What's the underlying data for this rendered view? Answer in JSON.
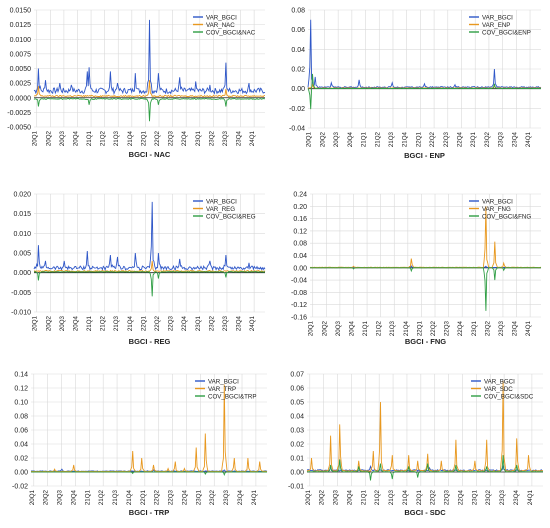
{
  "colors": {
    "var_bgci": "#2f57c8",
    "second": "#e8981f",
    "cov": "#2f9e44",
    "zero": "#222222",
    "grid": "#d9d9d9"
  },
  "x_ticks": [
    "20Q1",
    "20Q2",
    "20Q3",
    "20Q4",
    "21Q1",
    "21Q2",
    "21Q3",
    "21Q4",
    "22Q1",
    "22Q2",
    "22Q3",
    "22Q4",
    "23Q1",
    "23Q2",
    "23Q3",
    "23Q4",
    "24Q1"
  ],
  "chart_data": [
    {
      "type": "line",
      "title": "BGCI - NAC",
      "ylim": [
        -0.005,
        0.015
      ],
      "y_ticks": [
        "0.0150",
        "0.0125",
        "0.0100",
        "0.0075",
        "0.0050",
        "0.0025",
        "0.0000",
        "-0.0025",
        "-0.0050"
      ],
      "y_tick_values": [
        0.015,
        0.0125,
        0.01,
        0.0075,
        0.005,
        0.0025,
        0,
        -0.0025,
        -0.005
      ],
      "legend": [
        "VAR_BGCI",
        "VAR_NAC",
        "COV_BGCI&NAC"
      ],
      "legend_placement": "top-right",
      "series": [
        {
          "name": "VAR_BGCI",
          "baseline": 0.0012,
          "spikes": [
            [
              0.02,
              0.005
            ],
            [
              0.05,
              0.003
            ],
            [
              0.11,
              0.0025
            ],
            [
              0.16,
              0.0022
            ],
            [
              0.23,
              0.0042
            ],
            [
              0.24,
              0.0052
            ],
            [
              0.33,
              0.0045
            ],
            [
              0.36,
              0.0025
            ],
            [
              0.44,
              0.0042
            ],
            [
              0.5,
              0.0133
            ],
            [
              0.54,
              0.0042
            ],
            [
              0.63,
              0.0035
            ],
            [
              0.7,
              0.0028
            ],
            [
              0.76,
              0.0022
            ],
            [
              0.83,
              0.006
            ],
            [
              0.93,
              0.0025
            ]
          ]
        },
        {
          "name": "VAR_NAC",
          "baseline": 0.0003,
          "spikes": [
            [
              0.02,
              0.002
            ],
            [
              0.5,
              0.003
            ],
            [
              0.83,
              0.0015
            ]
          ]
        },
        {
          "name": "COV_BGCI&NAC",
          "baseline": -0.0002,
          "spikes": [
            [
              0.02,
              -0.0015
            ],
            [
              0.24,
              -0.0012
            ],
            [
              0.5,
              -0.004
            ],
            [
              0.54,
              -0.0012
            ],
            [
              0.83,
              -0.0015
            ]
          ]
        }
      ]
    },
    {
      "type": "line",
      "title": "BGCI - ENP",
      "ylim": [
        -0.04,
        0.08
      ],
      "y_ticks": [
        "0.08",
        "0.06",
        "0.04",
        "0.02",
        "0.00",
        "-0.02",
        "-0.04"
      ],
      "y_tick_values": [
        0.08,
        0.06,
        0.04,
        0.02,
        0,
        -0.02,
        -0.04
      ],
      "legend": [
        "VAR_BGCI",
        "VAR_ENP",
        "COV_BGCI&ENP"
      ],
      "legend_placement": "top-right",
      "series": [
        {
          "name": "VAR_BGCI",
          "baseline": 0.0015,
          "spikes": [
            [
              0.01,
              0.07
            ],
            [
              0.03,
              0.012
            ],
            [
              0.1,
              0.006
            ],
            [
              0.22,
              0.009
            ],
            [
              0.36,
              0.006
            ],
            [
              0.5,
              0.005
            ],
            [
              0.63,
              0.004
            ],
            [
              0.8,
              0.02
            ]
          ]
        },
        {
          "name": "VAR_ENP",
          "baseline": 0.0006,
          "spikes": [
            [
              0.02,
              0.004
            ],
            [
              0.8,
              0.003
            ]
          ]
        },
        {
          "name": "COV_BGCI&ENP",
          "baseline": 0.0002,
          "spikes": [
            [
              0.01,
              -0.022
            ],
            [
              0.02,
              0.015
            ],
            [
              0.8,
              0.005
            ]
          ]
        }
      ]
    },
    {
      "type": "line",
      "title": "BGCI - REG",
      "ylim": [
        -0.01,
        0.02
      ],
      "y_ticks": [
        "0.020",
        "0.015",
        "0.010",
        "0.005",
        "0.000",
        "-0.005",
        "-0.010"
      ],
      "y_tick_values": [
        0.02,
        0.015,
        0.01,
        0.005,
        0,
        -0.005,
        -0.01
      ],
      "legend": [
        "VAR_BGCI",
        "VAR_REG",
        "COV_BGCI&REG"
      ],
      "legend_placement": "top-right",
      "series": [
        {
          "name": "VAR_BGCI",
          "baseline": 0.0012,
          "spikes": [
            [
              0.02,
              0.007
            ],
            [
              0.05,
              0.003
            ],
            [
              0.13,
              0.003
            ],
            [
              0.23,
              0.0055
            ],
            [
              0.33,
              0.0045
            ],
            [
              0.36,
              0.004
            ],
            [
              0.44,
              0.005
            ],
            [
              0.51,
              0.018
            ],
            [
              0.54,
              0.005
            ],
            [
              0.63,
              0.0035
            ],
            [
              0.76,
              0.003
            ],
            [
              0.83,
              0.0045
            ],
            [
              0.93,
              0.0025
            ]
          ]
        },
        {
          "name": "VAR_REG",
          "baseline": 0.0004,
          "spikes": [
            [
              0.51,
              0.003
            ]
          ]
        },
        {
          "name": "COV_BGCI&REG",
          "baseline": 0.0002,
          "spikes": [
            [
              0.02,
              -0.002
            ],
            [
              0.51,
              -0.006
            ],
            [
              0.54,
              -0.0015
            ],
            [
              0.83,
              -0.0012
            ]
          ]
        }
      ]
    },
    {
      "type": "line",
      "title": "BGCI - FNG",
      "ylim": [
        -0.16,
        0.24
      ],
      "y_ticks": [
        "0.24",
        "0.20",
        "0.16",
        "0.12",
        "0.08",
        "0.04",
        "0.00",
        "-0.04",
        "-0.08",
        "-0.12",
        "-0.16"
      ],
      "y_tick_values": [
        0.24,
        0.2,
        0.16,
        0.12,
        0.08,
        0.04,
        0,
        -0.04,
        -0.08,
        -0.12,
        -0.16
      ],
      "legend": [
        "VAR_BGCI",
        "VAR_FNG",
        "COV_BGCI&FNG"
      ],
      "legend_placement": "top-right",
      "series": [
        {
          "name": "VAR_BGCI",
          "baseline": 0.001,
          "spikes": [
            [
              0.44,
              0.006
            ],
            [
              0.76,
              0.005
            ]
          ]
        },
        {
          "name": "VAR_FNG",
          "baseline": 0.0015,
          "spikes": [
            [
              0.19,
              0.005
            ],
            [
              0.44,
              0.03
            ],
            [
              0.76,
              0.2
            ],
            [
              0.8,
              0.085
            ],
            [
              0.84,
              0.015
            ]
          ]
        },
        {
          "name": "COV_BGCI&FNG",
          "baseline": 0.0002,
          "spikes": [
            [
              0.19,
              -0.004
            ],
            [
              0.44,
              -0.01
            ],
            [
              0.76,
              -0.14
            ],
            [
              0.8,
              -0.04
            ],
            [
              0.84,
              -0.008
            ]
          ]
        }
      ]
    },
    {
      "type": "line",
      "title": "BGCI - TRP",
      "ylim": [
        -0.02,
        0.14
      ],
      "y_ticks": [
        "0.14",
        "0.12",
        "0.10",
        "0.08",
        "0.06",
        "0.04",
        "0.02",
        "0.00",
        "-0.02"
      ],
      "y_tick_values": [
        0.14,
        0.12,
        0.1,
        0.08,
        0.06,
        0.04,
        0.02,
        0,
        -0.02
      ],
      "legend": [
        "VAR_BGCI",
        "VAR_TRP",
        "COV_BGCI&TRP"
      ],
      "legend_placement": "top-right",
      "series": [
        {
          "name": "VAR_BGCI",
          "baseline": 0.0012,
          "spikes": [
            [
              0.13,
              0.004
            ],
            [
              0.52,
              0.003
            ],
            [
              0.82,
              0.003
            ]
          ]
        },
        {
          "name": "VAR_TRP",
          "baseline": 0.0008,
          "spikes": [
            [
              0.1,
              0.004
            ],
            [
              0.18,
              0.01
            ],
            [
              0.43,
              0.03
            ],
            [
              0.47,
              0.02
            ],
            [
              0.52,
              0.01
            ],
            [
              0.58,
              0.005
            ],
            [
              0.61,
              0.015
            ],
            [
              0.65,
              0.005
            ],
            [
              0.7,
              0.035
            ],
            [
              0.74,
              0.055
            ],
            [
              0.82,
              0.125
            ],
            [
              0.86,
              0.02
            ],
            [
              0.92,
              0.02
            ],
            [
              0.97,
              0.015
            ]
          ]
        },
        {
          "name": "COV_BGCI&TRP",
          "baseline": 0.0001,
          "spikes": [
            [
              0.43,
              -0.002
            ],
            [
              0.74,
              -0.003
            ],
            [
              0.82,
              -0.004
            ]
          ]
        }
      ]
    },
    {
      "type": "line",
      "title": "BGCI - SDC",
      "ylim": [
        -0.01,
        0.07
      ],
      "y_ticks": [
        "0.07",
        "0.06",
        "0.05",
        "0.04",
        "0.03",
        "0.02",
        "0.01",
        "0.00",
        "-0.01"
      ],
      "y_tick_values": [
        0.07,
        0.06,
        0.05,
        0.04,
        0.03,
        0.02,
        0.01,
        0,
        -0.01
      ],
      "legend": [
        "VAR_BGCI",
        "VAR_SDC",
        "COV_BGCI&SDC"
      ],
      "legend_placement": "top-right",
      "series": [
        {
          "name": "VAR_BGCI",
          "baseline": 0.0012,
          "spikes": [
            [
              0.1,
              0.004
            ],
            [
              0.27,
              0.004
            ],
            [
              0.52,
              0.003
            ],
            [
              0.83,
              0.004
            ]
          ]
        },
        {
          "name": "VAR_SDC",
          "baseline": 0.0008,
          "spikes": [
            [
              0.02,
              0.01
            ],
            [
              0.1,
              0.026
            ],
            [
              0.14,
              0.034
            ],
            [
              0.22,
              0.008
            ],
            [
              0.28,
              0.015
            ],
            [
              0.31,
              0.05
            ],
            [
              0.36,
              0.012
            ],
            [
              0.43,
              0.012
            ],
            [
              0.47,
              0.008
            ],
            [
              0.51,
              0.013
            ],
            [
              0.57,
              0.008
            ],
            [
              0.63,
              0.023
            ],
            [
              0.71,
              0.008
            ],
            [
              0.76,
              0.023
            ],
            [
              0.83,
              0.065
            ],
            [
              0.89,
              0.024
            ],
            [
              0.94,
              0.012
            ]
          ]
        },
        {
          "name": "COV_BGCI&SDC",
          "baseline": 0.0002,
          "spikes": [
            [
              0.1,
              0.005
            ],
            [
              0.14,
              0.009
            ],
            [
              0.22,
              0.004
            ],
            [
              0.27,
              -0.006
            ],
            [
              0.31,
              0.006
            ],
            [
              0.36,
              -0.005
            ],
            [
              0.43,
              0.004
            ],
            [
              0.47,
              -0.004
            ],
            [
              0.51,
              0.006
            ],
            [
              0.63,
              0.005
            ],
            [
              0.76,
              0.004
            ],
            [
              0.83,
              0.012
            ],
            [
              0.89,
              0.005
            ]
          ]
        }
      ]
    }
  ]
}
